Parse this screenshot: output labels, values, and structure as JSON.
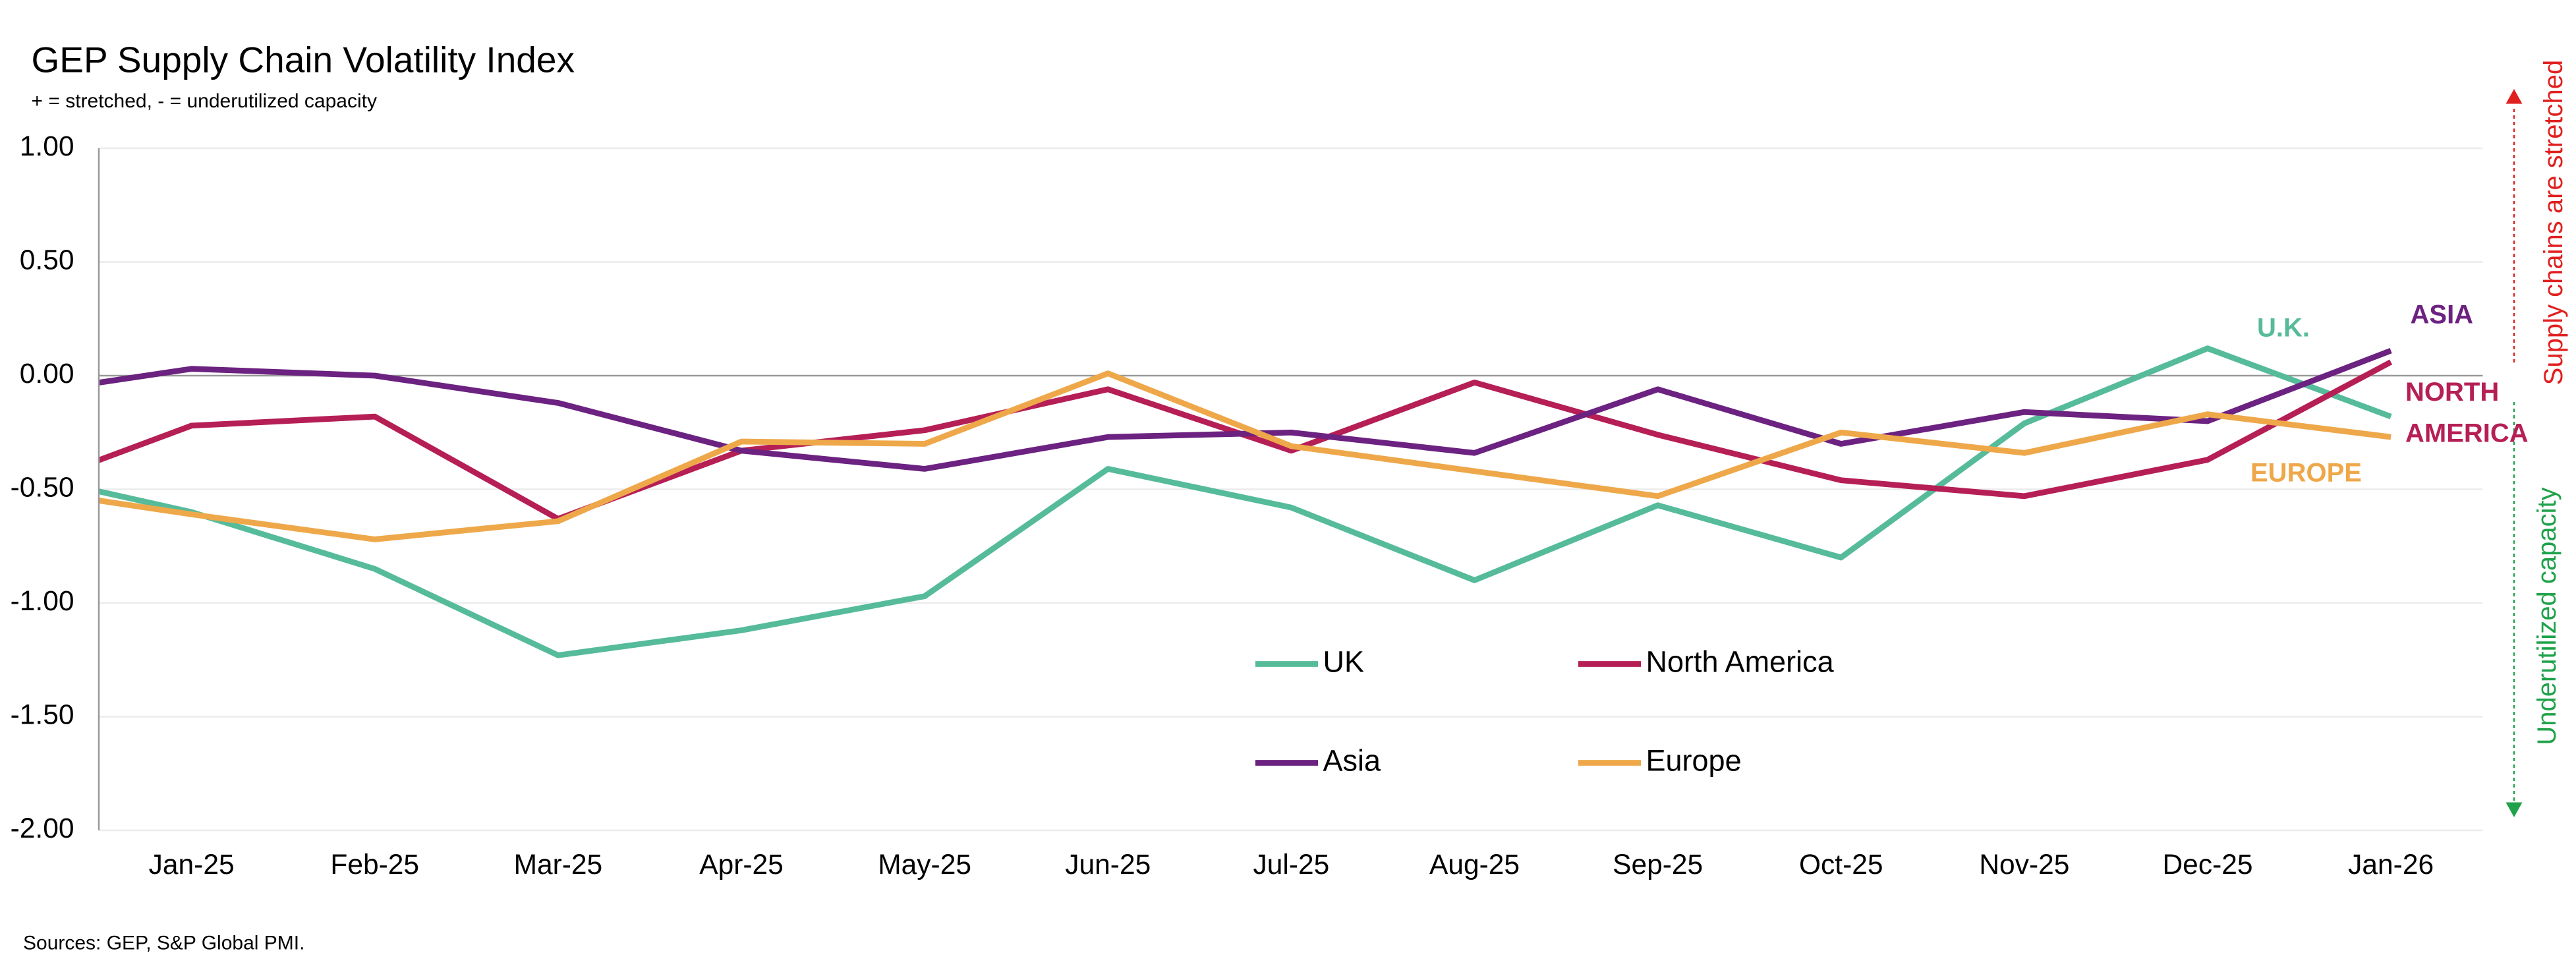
{
  "chart_data": {
    "type": "line",
    "title": "GEP Supply Chain Volatility Index",
    "subtitle": "+ = stretched, - = underutilized capacity",
    "source": "Sources: GEP, S&P Global PMI.",
    "categories": [
      null,
      "Jan-25",
      "Feb-25",
      "Mar-25",
      "Apr-25",
      "May-25",
      "Jun-25",
      "Jul-25",
      "Aug-25",
      "Sep-25",
      "Oct-25",
      "Nov-25",
      "Dec-25",
      "Jan-26"
    ],
    "series": [
      {
        "name": "UK",
        "color": "#56bb9a",
        "values": [
          -0.42,
          -0.6,
          -0.85,
          -1.23,
          -1.12,
          -0.97,
          -0.41,
          -0.58,
          -0.9,
          -0.57,
          -0.8,
          -0.21,
          0.12,
          -0.18
        ]
      },
      {
        "name": "North America",
        "color": "#b51f55",
        "values": [
          -0.52,
          -0.22,
          -0.18,
          -0.63,
          -0.33,
          -0.24,
          -0.06,
          -0.33,
          -0.03,
          -0.26,
          -0.46,
          -0.53,
          -0.37,
          0.06
        ]
      },
      {
        "name": "Asia",
        "color": "#6c2280",
        "values": [
          -0.09,
          0.03,
          0.0,
          -0.12,
          -0.33,
          -0.41,
          -0.27,
          -0.25,
          -0.34,
          -0.06,
          -0.3,
          -0.16,
          -0.2,
          0.11
        ]
      },
      {
        "name": "Europe",
        "color": "#eea84a",
        "values": [
          -0.49,
          -0.61,
          -0.72,
          -0.64,
          -0.29,
          -0.3,
          0.01,
          -0.31,
          -0.42,
          -0.53,
          -0.25,
          -0.34,
          -0.17,
          -0.27
        ]
      }
    ],
    "ylim": [
      -2,
      1
    ],
    "yticks": [
      {
        "value": -2,
        "label": "-2.00"
      },
      {
        "value": -1.5,
        "label": "-1.50"
      },
      {
        "value": -1,
        "label": "-1.00"
      },
      {
        "value": -0.5,
        "label": "-0.50"
      },
      {
        "value": 0,
        "label": "0.00"
      },
      {
        "value": 0.5,
        "label": "0.50"
      },
      {
        "value": 1,
        "label": "1.00"
      }
    ],
    "grid": true,
    "annotations": [
      {
        "text": "U.K.",
        "color": "#56bb9a"
      },
      {
        "text": "ASIA",
        "color": "#6c2280"
      },
      {
        "text": "NORTH",
        "color": "#b51f55"
      },
      {
        "text": "AMERICA",
        "color": "#b51f55"
      },
      {
        "text": "EUROPE",
        "color": "#eea84a"
      }
    ],
    "side_labels": [
      {
        "text": "Supply chains are stretched",
        "color": "#e0201f"
      },
      {
        "text": "Underutilized capacity",
        "color": "#1fa24a"
      }
    ]
  }
}
